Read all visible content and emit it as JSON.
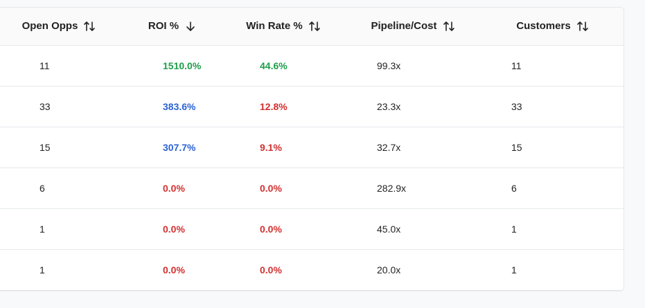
{
  "table": {
    "headers": [
      {
        "label": "Open Opps",
        "sort": "both"
      },
      {
        "label": "ROI %",
        "sort": "desc"
      },
      {
        "label": "Win Rate %",
        "sort": "both"
      },
      {
        "label": "Pipeline/Cost",
        "sort": "both"
      },
      {
        "label": "Customers",
        "sort": "both"
      }
    ],
    "rows": [
      {
        "open_opps": "11",
        "roi": "1510.0%",
        "roi_color": "green",
        "win_rate": "44.6%",
        "win_color": "green",
        "pipeline_cost": "99.3x",
        "customers": "11"
      },
      {
        "open_opps": "33",
        "roi": "383.6%",
        "roi_color": "blue",
        "win_rate": "12.8%",
        "win_color": "red",
        "pipeline_cost": "23.3x",
        "customers": "33"
      },
      {
        "open_opps": "15",
        "roi": "307.7%",
        "roi_color": "blue",
        "win_rate": "9.1%",
        "win_color": "red",
        "pipeline_cost": "32.7x",
        "customers": "15"
      },
      {
        "open_opps": "6",
        "roi": "0.0%",
        "roi_color": "red",
        "win_rate": "0.0%",
        "win_color": "red",
        "pipeline_cost": "282.9x",
        "customers": "6"
      },
      {
        "open_opps": "1",
        "roi": "0.0%",
        "roi_color": "red",
        "win_rate": "0.0%",
        "win_color": "red",
        "pipeline_cost": "45.0x",
        "customers": "1"
      },
      {
        "open_opps": "1",
        "roi": "0.0%",
        "roi_color": "red",
        "win_rate": "0.0%",
        "win_color": "red",
        "pipeline_cost": "20.0x",
        "customers": "1"
      }
    ]
  },
  "colors": {
    "green": "#1e9e4a",
    "blue": "#2b62d6",
    "red": "#d32f2f",
    "border": "#e5e7eb"
  },
  "icons": {
    "sort_both": "sort-both-icon",
    "sort_desc": "sort-desc-icon"
  }
}
